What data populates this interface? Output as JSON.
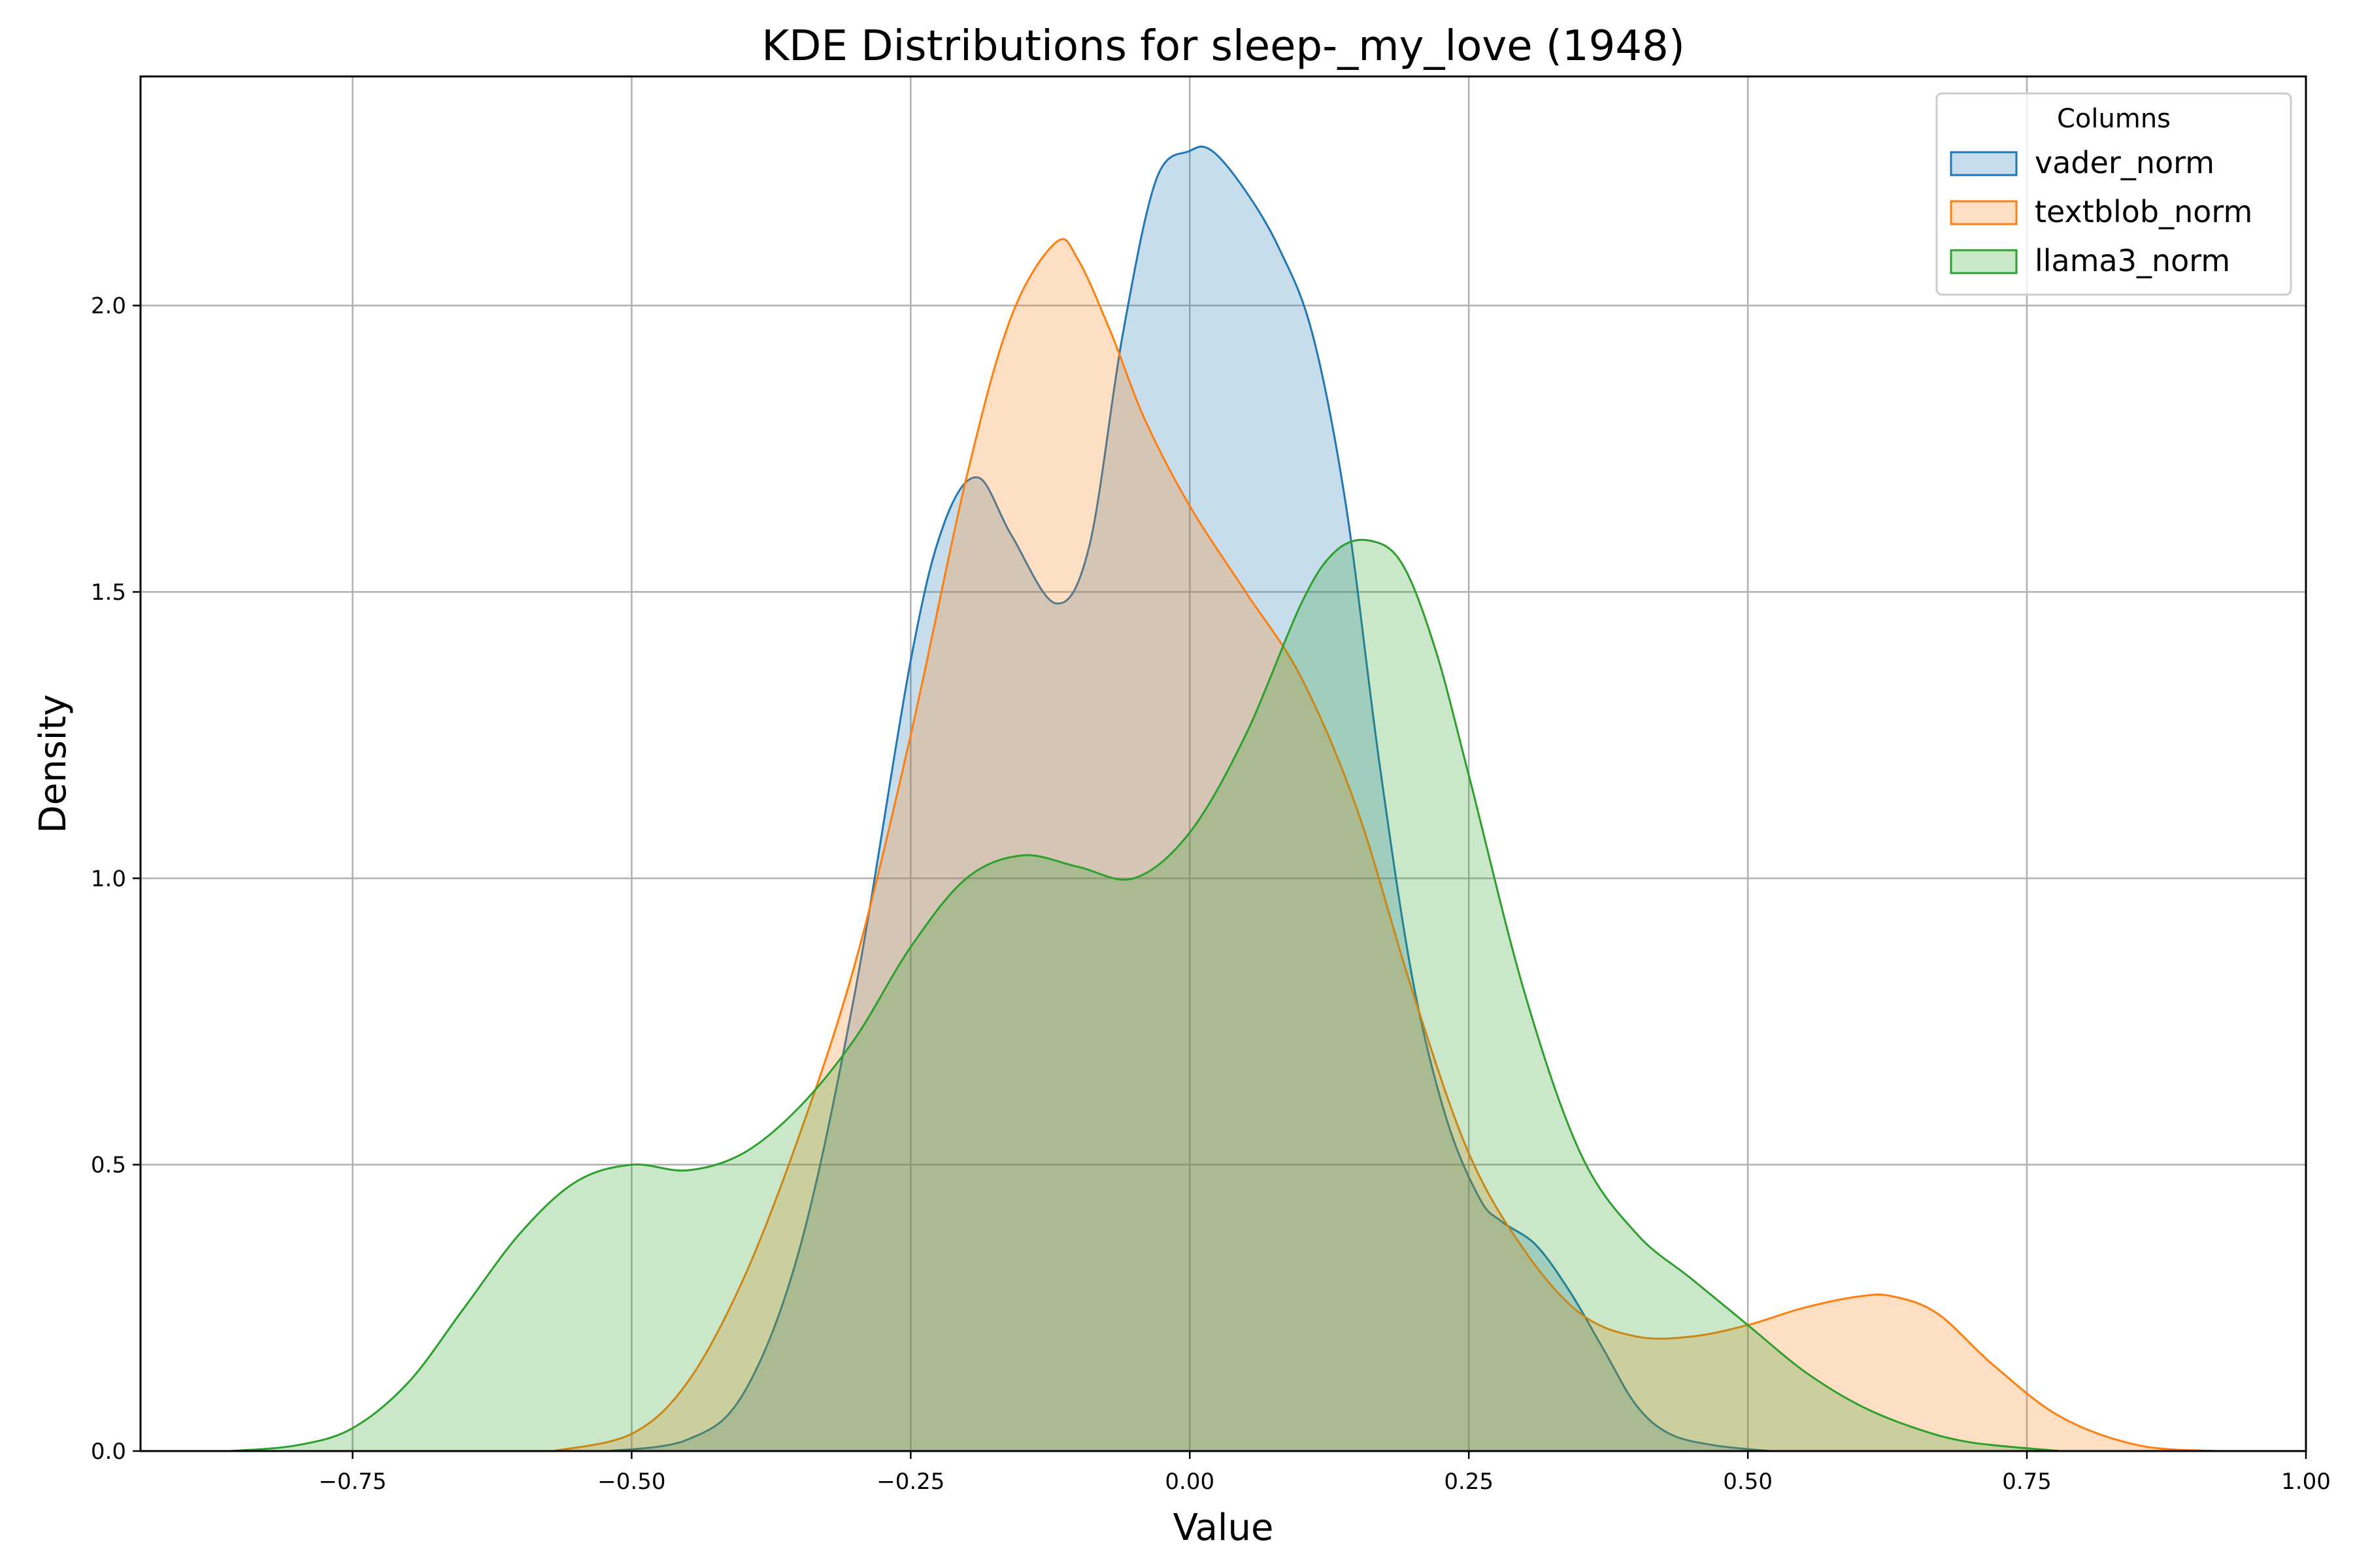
{
  "chart_data": {
    "type": "area",
    "title": "KDE Distributions for sleep-_my_love (1948)",
    "xlabel": "Value",
    "ylabel": "Density",
    "xlim": [
      -0.94,
      1.0
    ],
    "ylim": [
      0,
      2.4
    ],
    "xticks": [
      -0.75,
      -0.5,
      -0.25,
      0.0,
      0.25,
      0.5,
      0.75,
      1.0
    ],
    "xtick_labels": [
      "−0.75",
      "−0.50",
      "−0.25",
      "0.00",
      "0.25",
      "0.50",
      "0.75",
      "1.00"
    ],
    "yticks": [
      0.0,
      0.5,
      1.0,
      1.5,
      2.0
    ],
    "ytick_labels": [
      "0.0",
      "0.5",
      "1.0",
      "1.5",
      "2.0"
    ],
    "grid": true,
    "legend": {
      "title": "Columns",
      "placement": "top-right"
    },
    "series": [
      {
        "name": "vader_norm",
        "color": "#1f77b4",
        "x": [
          -0.52,
          -0.45,
          -0.4,
          -0.35,
          -0.3,
          -0.25,
          -0.22,
          -0.19,
          -0.16,
          -0.12,
          -0.09,
          -0.06,
          -0.03,
          0.0,
          0.02,
          0.05,
          0.08,
          0.11,
          0.14,
          0.17,
          0.2,
          0.23,
          0.26,
          0.28,
          0.31,
          0.34,
          0.37,
          0.4,
          0.43,
          0.47,
          0.52
        ],
        "y": [
          0.0,
          0.02,
          0.1,
          0.35,
          0.8,
          1.38,
          1.62,
          1.7,
          1.6,
          1.48,
          1.58,
          1.95,
          2.22,
          2.27,
          2.27,
          2.2,
          2.1,
          1.95,
          1.65,
          1.2,
          0.82,
          0.58,
          0.44,
          0.4,
          0.36,
          0.28,
          0.18,
          0.08,
          0.03,
          0.01,
          0.0
        ]
      },
      {
        "name": "textblob_norm",
        "color": "#ff7f0e",
        "x": [
          -0.57,
          -0.5,
          -0.45,
          -0.4,
          -0.35,
          -0.3,
          -0.25,
          -0.2,
          -0.16,
          -0.12,
          -0.1,
          -0.07,
          -0.04,
          0.0,
          0.05,
          0.1,
          0.15,
          0.2,
          0.25,
          0.3,
          0.35,
          0.4,
          0.45,
          0.5,
          0.55,
          0.6,
          0.63,
          0.67,
          0.72,
          0.78,
          0.85,
          0.92
        ],
        "y": [
          0.0,
          0.03,
          0.12,
          0.3,
          0.55,
          0.85,
          1.25,
          1.7,
          1.98,
          2.11,
          2.08,
          1.95,
          1.8,
          1.65,
          1.5,
          1.35,
          1.12,
          0.8,
          0.52,
          0.35,
          0.24,
          0.2,
          0.2,
          0.22,
          0.25,
          0.27,
          0.27,
          0.24,
          0.15,
          0.06,
          0.01,
          0.0
        ]
      },
      {
        "name": "llama3_norm",
        "color": "#2ca02c",
        "x": [
          -0.86,
          -0.8,
          -0.75,
          -0.7,
          -0.65,
          -0.6,
          -0.55,
          -0.5,
          -0.45,
          -0.4,
          -0.35,
          -0.3,
          -0.25,
          -0.2,
          -0.15,
          -0.1,
          -0.05,
          0.0,
          0.05,
          0.1,
          0.13,
          0.16,
          0.19,
          0.22,
          0.25,
          0.3,
          0.35,
          0.4,
          0.45,
          0.5,
          0.55,
          0.6,
          0.65,
          0.7,
          0.78
        ],
        "y": [
          0.0,
          0.01,
          0.04,
          0.12,
          0.25,
          0.38,
          0.47,
          0.5,
          0.49,
          0.52,
          0.6,
          0.72,
          0.88,
          1.0,
          1.04,
          1.02,
          1.0,
          1.08,
          1.25,
          1.48,
          1.57,
          1.59,
          1.55,
          1.4,
          1.18,
          0.8,
          0.52,
          0.38,
          0.3,
          0.22,
          0.14,
          0.08,
          0.04,
          0.015,
          0.0
        ]
      }
    ]
  }
}
